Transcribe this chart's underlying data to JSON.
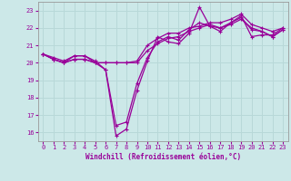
{
  "xlabel": "Windchill (Refroidissement éolien,°C)",
  "background_color": "#cce8e8",
  "grid_color": "#b8d8d8",
  "line_color": "#990099",
  "x": [
    0,
    1,
    2,
    3,
    4,
    5,
    6,
    7,
    8,
    9,
    10,
    11,
    12,
    13,
    14,
    15,
    16,
    17,
    18,
    19,
    20,
    21,
    22,
    23
  ],
  "series": [
    [
      20.5,
      20.3,
      20.1,
      20.4,
      20.4,
      20.1,
      19.6,
      15.8,
      16.2,
      18.4,
      20.1,
      21.5,
      21.2,
      21.1,
      21.7,
      23.2,
      22.1,
      21.8,
      22.3,
      22.7,
      21.5,
      21.6,
      21.6,
      22.0
    ],
    [
      20.5,
      20.2,
      20.0,
      20.4,
      20.4,
      20.0,
      19.6,
      16.4,
      16.6,
      18.8,
      20.3,
      21.2,
      21.5,
      21.3,
      21.9,
      22.3,
      22.1,
      22.0,
      22.3,
      22.6,
      21.9,
      21.8,
      21.5,
      21.9
    ],
    [
      20.5,
      20.2,
      20.0,
      20.2,
      20.2,
      20.0,
      20.0,
      20.0,
      20.0,
      20.0,
      20.7,
      21.1,
      21.4,
      21.5,
      21.8,
      22.0,
      22.2,
      22.0,
      22.2,
      22.5,
      22.0,
      21.8,
      21.5,
      21.9
    ],
    [
      20.5,
      20.2,
      20.0,
      20.2,
      20.2,
      20.0,
      20.0,
      20.0,
      20.0,
      20.1,
      21.0,
      21.4,
      21.7,
      21.7,
      22.0,
      22.1,
      22.3,
      22.3,
      22.5,
      22.8,
      22.2,
      22.0,
      21.8,
      22.0
    ]
  ],
  "ylim": [
    15.5,
    23.5
  ],
  "yticks": [
    16,
    17,
    18,
    19,
    20,
    21,
    22,
    23
  ],
  "xlim": [
    -0.5,
    23.5
  ],
  "xticks": [
    0,
    1,
    2,
    3,
    4,
    5,
    6,
    7,
    8,
    9,
    10,
    11,
    12,
    13,
    14,
    15,
    16,
    17,
    18,
    19,
    20,
    21,
    22,
    23
  ]
}
